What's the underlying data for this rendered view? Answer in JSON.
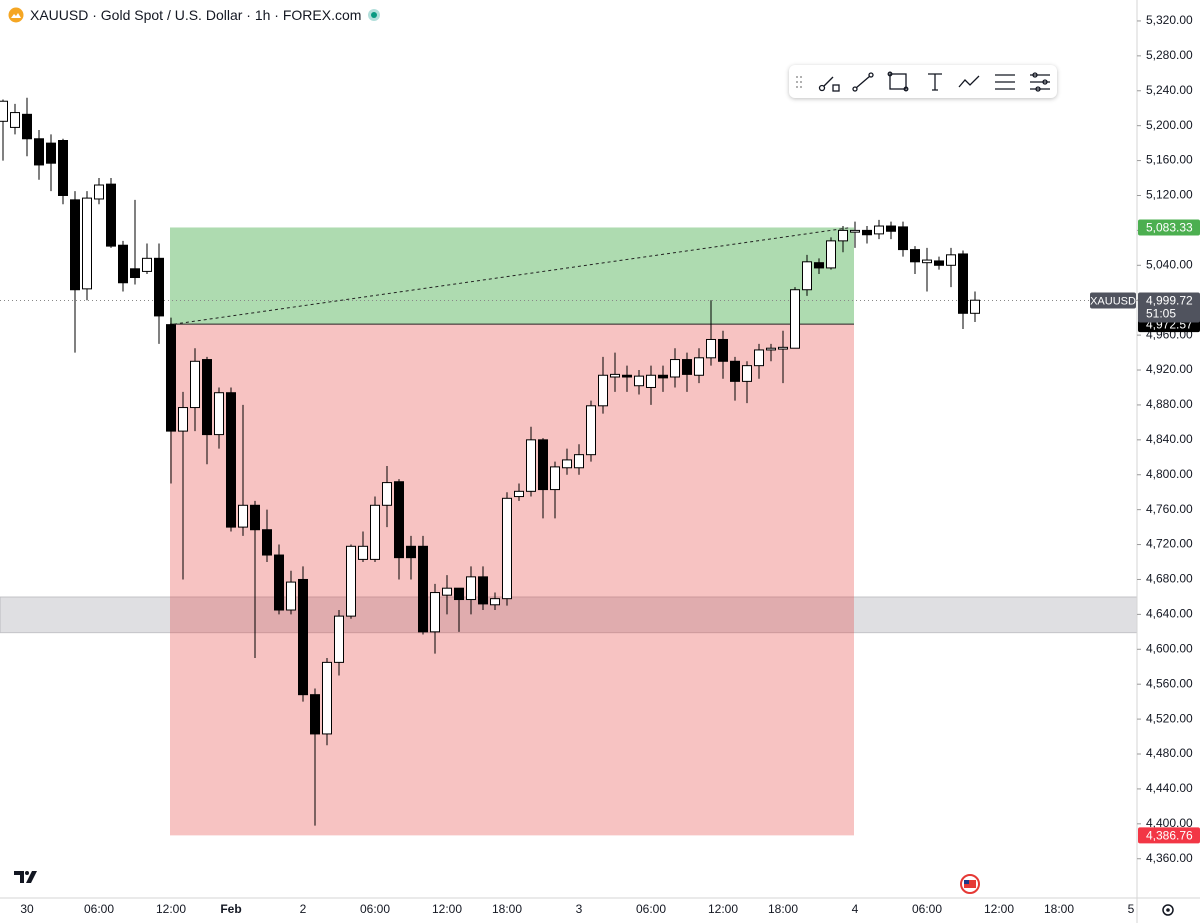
{
  "chart_data": {
    "type": "candlestick",
    "title": "XAUUSD · Gold Spot / U.S. Dollar · 1h · FOREX.com",
    "categories": [
      null,
      null,
      "30",
      null,
      null,
      null,
      null,
      null,
      "06:00",
      null,
      null,
      null,
      null,
      null,
      "12:00",
      null,
      null,
      null,
      null,
      "Feb",
      null,
      null,
      null,
      null,
      null,
      "2",
      null,
      null,
      null,
      null,
      null,
      "06:00",
      null,
      null,
      null,
      null,
      null,
      "12:00",
      null,
      null,
      null,
      null,
      "18:00",
      null,
      null,
      null,
      null,
      null,
      "3",
      null,
      null,
      null,
      null,
      null,
      "06:00",
      null,
      null,
      null,
      null,
      null,
      "12:00",
      null,
      null,
      null,
      null,
      "18:00",
      null,
      null,
      null,
      null,
      null,
      "4",
      null,
      null,
      null,
      null,
      null,
      "06:00",
      null,
      null,
      null,
      null,
      null,
      "12:00",
      null,
      null,
      null,
      null,
      "18:00",
      null,
      null,
      null,
      null,
      null,
      "5"
    ],
    "open": [
      5205,
      5198,
      5213,
      5185,
      5180,
      5183,
      5115,
      5013,
      5116,
      5133,
      5063,
      5036,
      5033,
      5048,
      4972,
      4850,
      4877,
      4932,
      4846,
      4894,
      4740,
      4765,
      4737,
      4708,
      4645,
      4680,
      4548,
      4503,
      4585,
      4638,
      4703,
      4703,
      4765,
      4792,
      4718,
      4718,
      4620,
      4662,
      4670,
      4657,
      4683,
      4651,
      4658,
      4775,
      4781,
      4840,
      4783,
      4808,
      4808,
      4823,
      4879,
      4912,
      4914,
      4902,
      4900,
      4914,
      4912,
      4932,
      4914,
      4934,
      4955,
      4930,
      4907,
      4925,
      4943,
      4944,
      4945,
      5012,
      5043,
      5037,
      5068,
      5078,
      5080,
      5076,
      5085,
      5084,
      5058,
      5043,
      5045,
      5040,
      5053,
      4985,
      null,
      null,
      null,
      null,
      null,
      null,
      null,
      null,
      null,
      null,
      null,
      null,
      null
    ],
    "high": [
      5230,
      5225,
      5232,
      5195,
      5190,
      5185,
      5125,
      5125,
      5140,
      5140,
      5068,
      5115,
      5065,
      5065,
      4980,
      4895,
      4945,
      4935,
      4900,
      4900,
      4880,
      4770,
      4760,
      4720,
      4690,
      4695,
      4555,
      4590,
      4645,
      4720,
      4735,
      4775,
      4810,
      4795,
      4730,
      4730,
      4675,
      4685,
      4670,
      4695,
      4695,
      4665,
      4780,
      4790,
      4855,
      4842,
      4815,
      4830,
      4835,
      4885,
      4935,
      4940,
      4925,
      4920,
      4925,
      4925,
      4945,
      4940,
      4945,
      5000,
      4965,
      4935,
      4930,
      4950,
      4950,
      4965,
      5015,
      5052,
      5048,
      5072,
      5085,
      5090,
      5085,
      5092,
      5090,
      5090,
      5062,
      5060,
      5050,
      5060,
      5057,
      5010,
      null,
      null,
      null,
      null,
      null,
      null,
      null,
      null,
      null,
      null,
      null,
      null,
      null
    ],
    "low": [
      5160,
      5190,
      5165,
      5138,
      5125,
      5110,
      4940,
      5000,
      5110,
      5060,
      5010,
      5018,
      5030,
      4950,
      4790,
      4680,
      4850,
      4812,
      4830,
      4735,
      4730,
      4590,
      4700,
      4640,
      4640,
      4540,
      4398,
      4490,
      4570,
      4635,
      4700,
      4700,
      4740,
      4680,
      4680,
      4617,
      4595,
      4640,
      4620,
      4640,
      4645,
      4645,
      4650,
      4770,
      4775,
      4750,
      4750,
      4800,
      4800,
      4815,
      4870,
      4895,
      4895,
      4892,
      4880,
      4895,
      4900,
      4895,
      4905,
      4925,
      4910,
      4885,
      4882,
      4910,
      4930,
      4905,
      4945,
      5005,
      5030,
      5035,
      5055,
      5060,
      5065,
      5070,
      5070,
      5050,
      5030,
      5010,
      5035,
      5015,
      4967,
      4975,
      null,
      null,
      null,
      null,
      null,
      null,
      null,
      null,
      null,
      null,
      null,
      null,
      null
    ],
    "close": [
      5228,
      5215,
      5185,
      5155,
      5157,
      5120,
      5012,
      5117,
      5132,
      5062,
      5020,
      5026,
      5048,
      4982,
      4850,
      4877,
      4930,
      4846,
      4894,
      4740,
      4765,
      4737,
      4708,
      4645,
      4677,
      4548,
      4503,
      4585,
      4638,
      4718,
      4718,
      4765,
      4791,
      4705,
      4705,
      4620,
      4665,
      4670,
      4657,
      4683,
      4652,
      4658,
      4773,
      4781,
      4840,
      4783,
      4809,
      4817,
      4823,
      4879,
      4914,
      4915,
      4912,
      4913,
      4914,
      4911,
      4932,
      4915,
      4934,
      4955,
      4930,
      4907,
      4925,
      4943,
      4945,
      4946,
      5012,
      5044,
      5037,
      5068,
      5080,
      5080,
      5075,
      5085,
      5079,
      5058,
      5044,
      5046,
      5040,
      5052,
      4985,
      5000,
      null,
      null,
      null,
      null,
      null,
      null,
      null,
      null,
      null,
      null,
      null,
      null,
      null
    ],
    "up_color": "#ffffff",
    "down_color": "#000000",
    "ylim": [
      4315,
      5344
    ],
    "yticks": [
      {
        "value": 5320,
        "label": "5,320.00"
      },
      {
        "value": 5280,
        "label": "5,280.00"
      },
      {
        "value": 5240,
        "label": "5,240.00"
      },
      {
        "value": 5200,
        "label": "5,200.00"
      },
      {
        "value": 5160,
        "label": "5,160.00"
      },
      {
        "value": 5120,
        "label": "5,120.00"
      },
      {
        "value": 5080,
        "label": "5,080.00"
      },
      {
        "value": 5040,
        "label": "5,040.00"
      },
      {
        "value": 5000,
        "label": "5,000.00"
      },
      {
        "value": 4960,
        "label": "4,960.00"
      },
      {
        "value": 4920,
        "label": "4,920.00"
      },
      {
        "value": 4880,
        "label": "4,880.00"
      },
      {
        "value": 4840,
        "label": "4,840.00"
      },
      {
        "value": 4800,
        "label": "4,800.00"
      },
      {
        "value": 4760,
        "label": "4,760.00"
      },
      {
        "value": 4720,
        "label": "4,720.00"
      },
      {
        "value": 4680,
        "label": "4,680.00"
      },
      {
        "value": 4640,
        "label": "4,640.00"
      },
      {
        "value": 4600,
        "label": "4,600.00"
      },
      {
        "value": 4560,
        "label": "4,560.00"
      },
      {
        "value": 4520,
        "label": "4,520.00"
      },
      {
        "value": 4480,
        "label": "4,480.00"
      },
      {
        "value": 4440,
        "label": "4,440.00"
      },
      {
        "value": 4400,
        "label": "4,400.00"
      },
      {
        "value": 4360,
        "label": "4,360.00"
      }
    ],
    "symbol": "XAUUSD",
    "last_price": {
      "value": 4999.72,
      "label": "4,999.72"
    },
    "countdown": "51:05",
    "position": {
      "target": {
        "value": 5083.33,
        "label": "5,083.33"
      },
      "entry": {
        "value": 4972.57,
        "label": "4,972.57"
      },
      "stop": {
        "value": 4386.76,
        "label": "4,386.76"
      }
    },
    "zone": [
      4619,
      4660
    ]
  }
}
